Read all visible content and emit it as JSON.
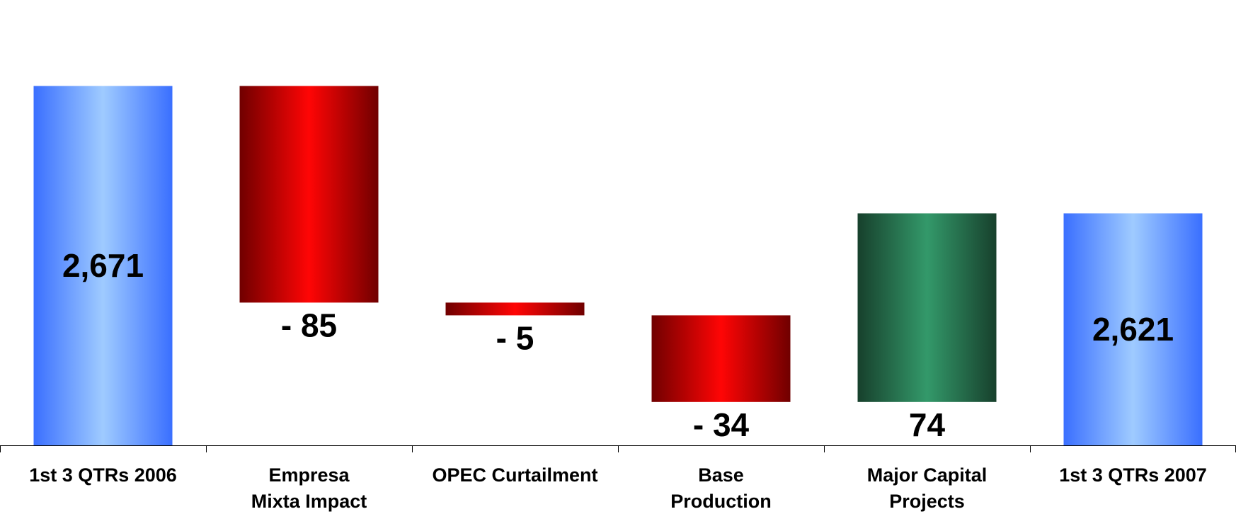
{
  "chart_data": {
    "type": "waterfall",
    "categories": [
      [
        "1st 3 QTRs 2006"
      ],
      [
        "Empresa",
        "Mixta Impact"
      ],
      [
        "OPEC Curtailment"
      ],
      [
        "Base",
        "Production"
      ],
      [
        "Major Capital",
        "Projects"
      ],
      [
        "1st 3 QTRs 2007"
      ]
    ],
    "values": [
      2671,
      -85,
      -5,
      -34,
      74,
      2621
    ],
    "kinds": [
      "total",
      "decrease",
      "decrease",
      "decrease",
      "increase",
      "total"
    ],
    "data_labels": [
      "2,671",
      "- 85",
      "- 5",
      "- 34",
      "74",
      "2,621"
    ],
    "colors": {
      "total": "#4a7dff",
      "total_light": "#9fcbff",
      "decrease": "#ff0000",
      "decrease_dark": "#7a0000",
      "increase": "#33996a",
      "increase_dark": "#1b4530"
    }
  }
}
